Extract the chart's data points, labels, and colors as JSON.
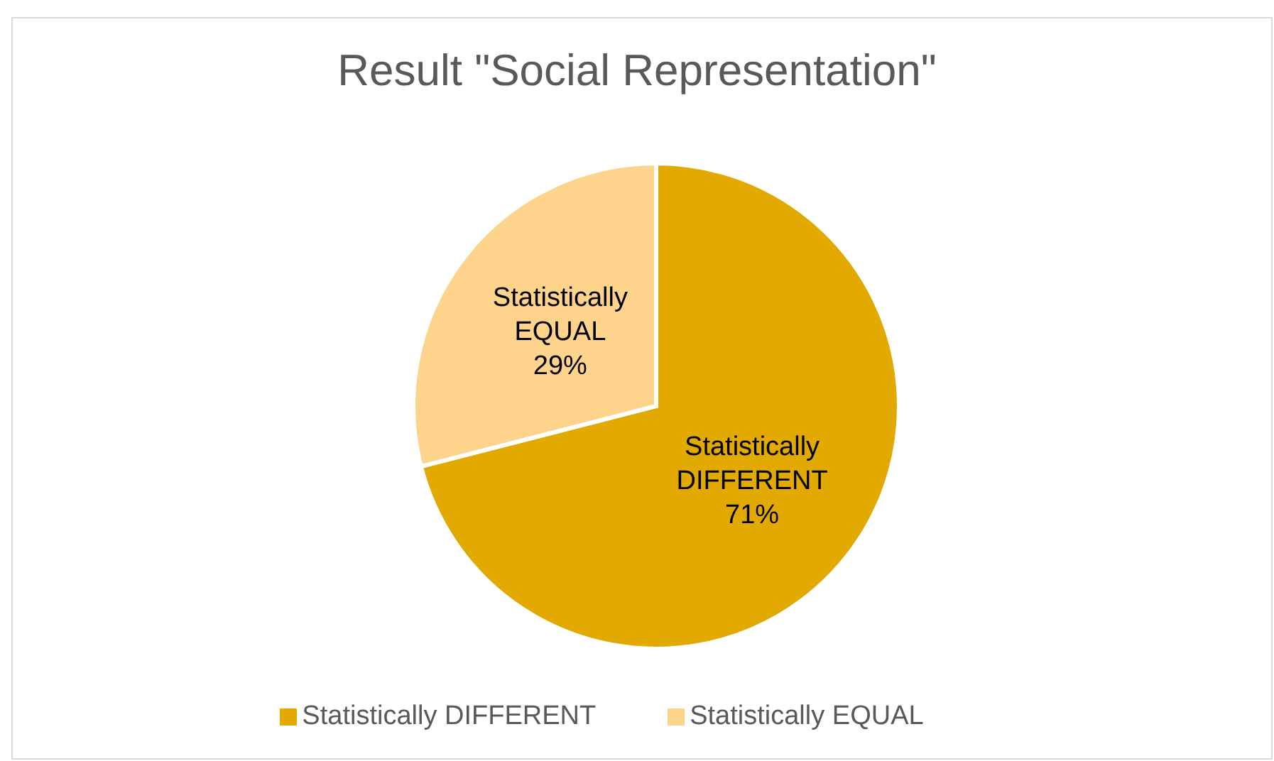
{
  "chart_data": {
    "type": "pie",
    "title": "Result \"Social Representation\"",
    "categories": [
      "Statistically DIFFERENT",
      "Statistically EQUAL"
    ],
    "values": [
      71,
      29
    ],
    "colors": [
      "#e2aa00",
      "#fed38b"
    ],
    "value_labels": [
      "71%",
      "29%"
    ],
    "legend": "bottom"
  }
}
